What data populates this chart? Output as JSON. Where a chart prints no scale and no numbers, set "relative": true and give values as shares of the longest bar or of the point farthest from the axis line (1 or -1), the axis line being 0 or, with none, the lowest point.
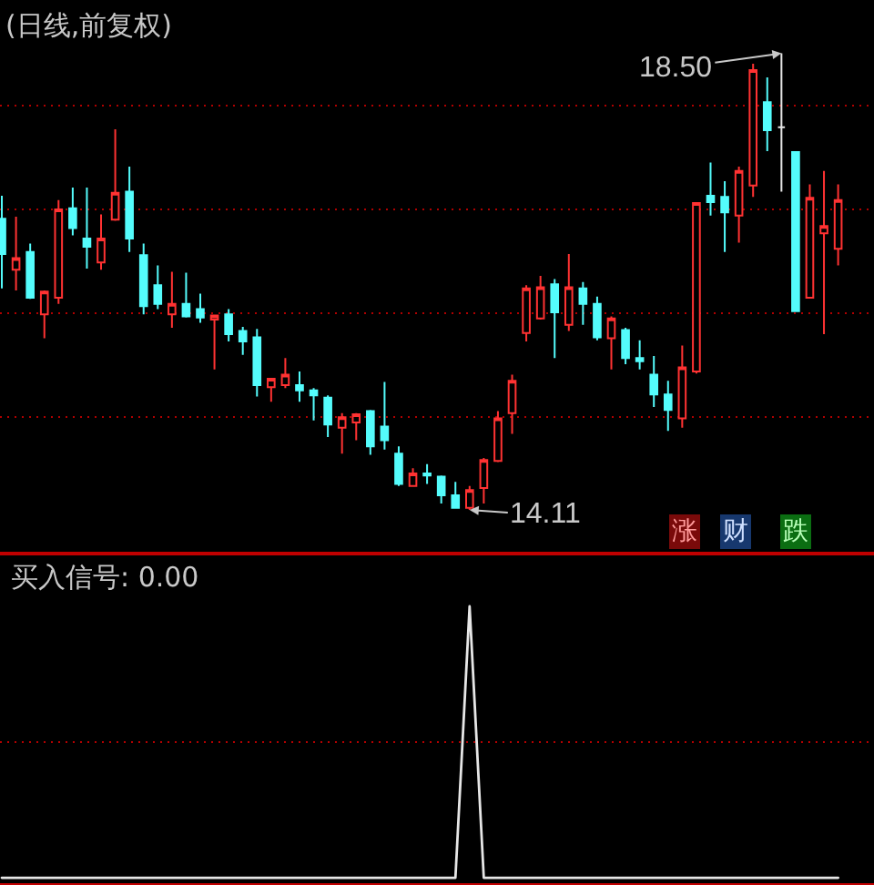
{
  "chart_data": [
    {
      "type": "candlestick",
      "title": "(日线,前复权)",
      "categories": [
        null,
        null,
        null,
        null,
        null,
        null,
        null,
        null,
        null,
        null,
        null,
        null,
        null,
        null,
        null,
        null,
        null,
        null,
        null,
        null,
        null,
        null,
        null,
        null,
        null,
        null,
        null,
        null,
        null,
        null,
        null,
        null,
        null,
        null,
        null,
        null,
        null,
        null,
        null,
        null,
        null,
        null,
        null,
        null,
        null,
        null,
        null,
        null,
        null,
        null,
        null,
        null,
        null,
        null,
        null,
        null,
        null,
        null,
        null,
        null
      ],
      "ohlc": [
        [
          16.91,
          17.13,
          16.24,
          16.57
        ],
        [
          16.42,
          16.93,
          16.22,
          16.53
        ],
        [
          16.59,
          16.67,
          16.14,
          16.15
        ],
        [
          15.99,
          16.22,
          15.76,
          16.21
        ],
        [
          16.15,
          17.09,
          16.09,
          17.0
        ],
        [
          17.01,
          17.21,
          16.75,
          16.82
        ],
        [
          16.72,
          17.21,
          16.43,
          16.64
        ],
        [
          16.49,
          16.95,
          16.42,
          16.72
        ],
        [
          16.9,
          17.77,
          16.89,
          17.16
        ],
        [
          17.17,
          17.41,
          16.59,
          16.72
        ],
        [
          16.56,
          16.67,
          15.99,
          16.07
        ],
        [
          16.27,
          16.46,
          16.04,
          16.09
        ],
        [
          15.99,
          16.4,
          15.86,
          16.09
        ],
        [
          16.09,
          16.39,
          15.96,
          15.97
        ],
        [
          16.04,
          16.19,
          15.91,
          15.96
        ],
        [
          15.94,
          15.98,
          15.46,
          15.98
        ],
        [
          15.99,
          16.04,
          15.73,
          15.8
        ],
        [
          15.83,
          15.87,
          15.6,
          15.73
        ],
        [
          15.77,
          15.85,
          15.2,
          15.31
        ],
        [
          15.29,
          15.38,
          15.15,
          15.37
        ],
        [
          15.31,
          15.57,
          15.28,
          15.41
        ],
        [
          15.31,
          15.44,
          15.15,
          15.26
        ],
        [
          15.26,
          15.28,
          14.97,
          15.21
        ],
        [
          15.19,
          15.21,
          14.81,
          14.93
        ],
        [
          14.9,
          15.04,
          14.65,
          15.0
        ],
        [
          14.95,
          15.04,
          14.78,
          15.03
        ],
        [
          15.06,
          15.07,
          14.64,
          14.72
        ],
        [
          14.91,
          15.34,
          14.69,
          14.78
        ],
        [
          14.65,
          14.72,
          14.34,
          14.36
        ],
        [
          14.34,
          14.51,
          14.33,
          14.46
        ],
        [
          14.46,
          14.55,
          14.36,
          14.44
        ],
        [
          14.43,
          14.44,
          14.17,
          14.25
        ],
        [
          14.25,
          14.38,
          14.13,
          14.13
        ],
        [
          14.13,
          14.34,
          14.11,
          14.3
        ],
        [
          14.32,
          14.61,
          14.17,
          14.59
        ],
        [
          14.58,
          15.06,
          14.57,
          14.99
        ],
        [
          15.04,
          15.41,
          14.84,
          15.35
        ],
        [
          15.81,
          16.27,
          15.73,
          16.24
        ],
        [
          15.95,
          16.36,
          15.94,
          16.25
        ],
        [
          16.28,
          16.33,
          15.57,
          16.01
        ],
        [
          15.89,
          16.57,
          15.83,
          16.25
        ],
        [
          16.24,
          16.3,
          15.89,
          16.09
        ],
        [
          16.09,
          16.16,
          15.74,
          15.77
        ],
        [
          15.76,
          15.97,
          15.46,
          15.95
        ],
        [
          15.84,
          15.86,
          15.51,
          15.57
        ],
        [
          15.57,
          15.74,
          15.46,
          15.54
        ],
        [
          15.41,
          15.59,
          15.1,
          15.22
        ],
        [
          15.22,
          15.35,
          14.87,
          15.07
        ],
        [
          14.99,
          15.69,
          14.9,
          15.48
        ],
        [
          15.44,
          17.06,
          15.42,
          17.06
        ],
        [
          17.13,
          17.45,
          16.94,
          17.07
        ],
        [
          17.12,
          17.27,
          16.59,
          16.97
        ],
        [
          16.94,
          17.41,
          16.68,
          17.37
        ],
        [
          17.23,
          18.4,
          17.12,
          18.34
        ],
        [
          18.03,
          18.27,
          17.56,
          17.76
        ],
        [
          17.79,
          18.5,
          17.17,
          17.79
        ],
        [
          17.55,
          17.55,
          16.02,
          16.02
        ],
        [
          16.15,
          17.24,
          16.15,
          17.11
        ],
        [
          16.77,
          17.37,
          15.8,
          16.84
        ],
        [
          16.62,
          17.24,
          16.46,
          17.09
        ]
      ],
      "colors": [
        "#54fcfc",
        "#ff3232",
        "#54fcfc",
        "#ff3232",
        "#ff3232",
        "#54fcfc",
        "#54fcfc",
        "#ff3232",
        "#ff3232",
        "#54fcfc",
        "#54fcfc",
        "#54fcfc",
        "#ff3232",
        "#54fcfc",
        "#54fcfc",
        "#ff3232",
        "#54fcfc",
        "#54fcfc",
        "#54fcfc",
        "#ff3232",
        "#ff3232",
        "#54fcfc",
        "#54fcfc",
        "#54fcfc",
        "#ff3232",
        "#ff3232",
        "#54fcfc",
        "#54fcfc",
        "#54fcfc",
        "#ff3232",
        "#54fcfc",
        "#54fcfc",
        "#54fcfc",
        "#ff3232",
        "#ff3232",
        "#ff3232",
        "#ff3232",
        "#ff3232",
        "#ff3232",
        "#54fcfc",
        "#ff3232",
        "#54fcfc",
        "#54fcfc",
        "#ff3232",
        "#54fcfc",
        "#54fcfc",
        "#54fcfc",
        "#54fcfc",
        "#ff3232",
        "#ff3232",
        "#54fcfc",
        "#54fcfc",
        "#ff3232",
        "#ff3232",
        "#54fcfc",
        "#e6e6e6",
        "#54fcfc",
        "#ff3232",
        "#ff3232",
        "#ff3232"
      ],
      "yticks": [
        {
          "value": 15,
          "label": null
        },
        {
          "value": 16,
          "label": null
        },
        {
          "value": 17,
          "label": null
        },
        {
          "value": 18,
          "label": null
        }
      ],
      "grid": "y",
      "annotations": [
        "18.50",
        "14.11",
        "涨",
        "财",
        "跌"
      ]
    },
    {
      "type": "line",
      "title": "买入信号: 0.00",
      "relative": true,
      "categories": [
        null,
        null,
        null,
        null,
        null,
        null,
        null,
        null,
        null,
        null,
        null,
        null,
        null,
        null,
        null,
        null,
        null,
        null,
        null,
        null,
        null,
        null,
        null,
        null,
        null,
        null,
        null,
        null,
        null,
        null,
        null,
        null,
        null,
        null,
        null,
        null,
        null,
        null,
        null,
        null,
        null,
        null,
        null,
        null,
        null,
        null,
        null,
        null,
        null,
        null,
        null,
        null,
        null,
        null,
        null,
        null,
        null,
        null,
        null,
        null
      ],
      "series": [
        {
          "color": "#e6e6e6",
          "values": [
            0,
            0,
            0,
            0,
            0,
            0,
            0,
            0,
            0,
            0,
            0,
            0,
            0,
            0,
            0,
            0,
            0,
            0,
            0,
            0,
            0,
            0,
            0,
            0,
            0,
            0,
            0,
            0,
            0,
            0,
            0,
            0,
            0,
            1,
            0,
            0,
            0,
            0,
            0,
            0,
            0,
            0,
            0,
            0,
            0,
            0,
            0,
            0,
            0,
            0,
            0,
            0,
            0,
            0,
            0,
            0,
            0,
            0,
            0,
            0
          ]
        }
      ],
      "ref_lines": [
        {
          "axis": "y",
          "value": 0.5,
          "color": "#b00000",
          "line_style": "dotted"
        }
      ]
    }
  ]
}
